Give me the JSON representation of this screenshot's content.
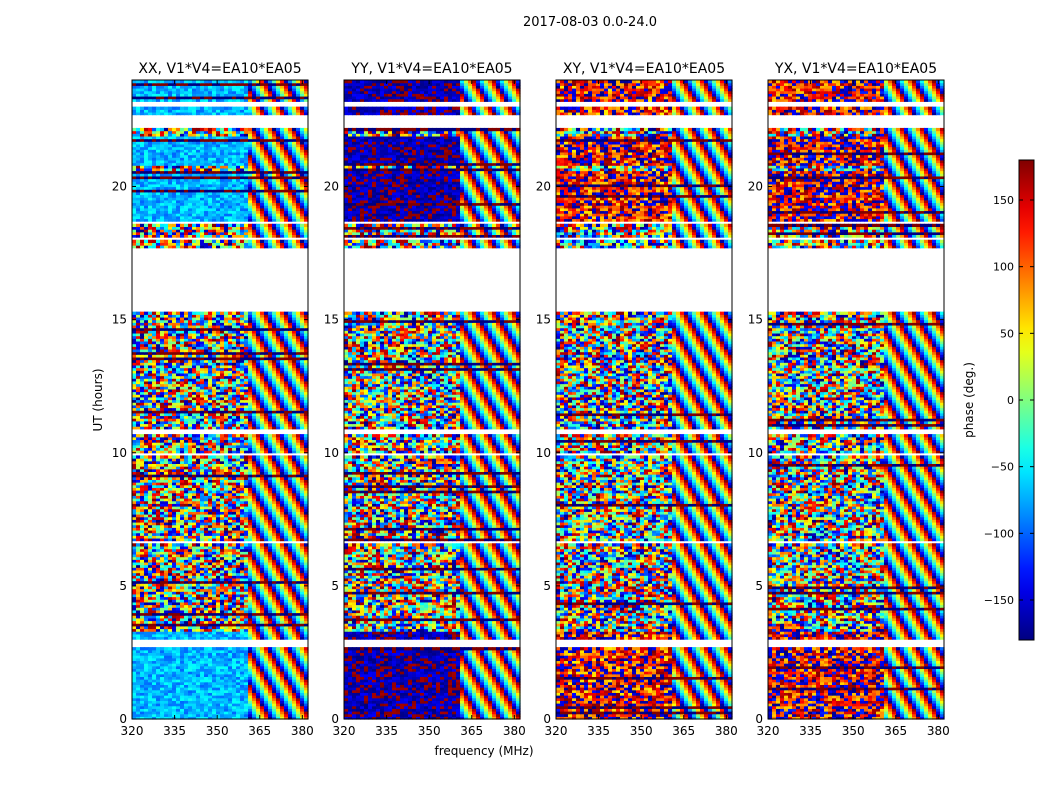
{
  "figure": {
    "title": "2017-08-03 0.0-24.0"
  },
  "chart_data": {
    "type": "heatmap",
    "title": "2017-08-03 0.0-24.0",
    "xlabel": "frequency (MHz)",
    "ylabel": "UT (hours)",
    "xlim": [
      320,
      382
    ],
    "ylim": [
      0,
      24
    ],
    "xticks": [
      320,
      335,
      350,
      365,
      380
    ],
    "yticks": [
      0,
      5,
      10,
      15,
      20
    ],
    "xtick_labels": [
      "320",
      "335",
      "350",
      "365",
      "380"
    ],
    "ytick_labels": [
      "0",
      "5",
      "10",
      "15",
      "20"
    ],
    "panels": [
      {
        "title": "XX, V1*V4=EA10*EA05",
        "base_phase": -70,
        "noise_phase": 60
      },
      {
        "title": "YY, V1*V4=EA10*EA05",
        "base_phase": -165,
        "noise_phase": 60
      },
      {
        "title": "XY, V1*V4=EA10*EA05",
        "base_phase": 140,
        "noise_phase": 180
      },
      {
        "title": "YX, V1*V4=EA10*EA05",
        "base_phase": 150,
        "noise_phase": 180
      }
    ],
    "colorbar": {
      "label": "phase (deg.)",
      "range": [
        -180,
        180
      ],
      "ticks": [
        150,
        100,
        50,
        0,
        -50,
        -100,
        -150
      ],
      "tick_labels": [
        "150",
        "100",
        "50",
        "0",
        "−50",
        "−100",
        "−150"
      ],
      "colormap": "jet"
    },
    "data_gaps_hours": [
      [
        2.72,
        2.95
      ],
      [
        6.6,
        6.75
      ],
      [
        9.88,
        10.05
      ],
      [
        10.75,
        10.9
      ],
      [
        15.3,
        17.7
      ],
      [
        18.0,
        18.1
      ],
      [
        18.6,
        18.75
      ],
      [
        22.2,
        22.7
      ],
      [
        23.0,
        23.25
      ]
    ],
    "coherent_segments_hours": [
      [
        0.0,
        2.72
      ],
      [
        2.95,
        3.1
      ],
      [
        3.1,
        3.3
      ],
      [
        18.75,
        20.6
      ],
      [
        20.8,
        21.95
      ],
      [
        22.7,
        23.0
      ],
      [
        23.25,
        24.0
      ]
    ],
    "fringe_start_mhz": 361
  }
}
